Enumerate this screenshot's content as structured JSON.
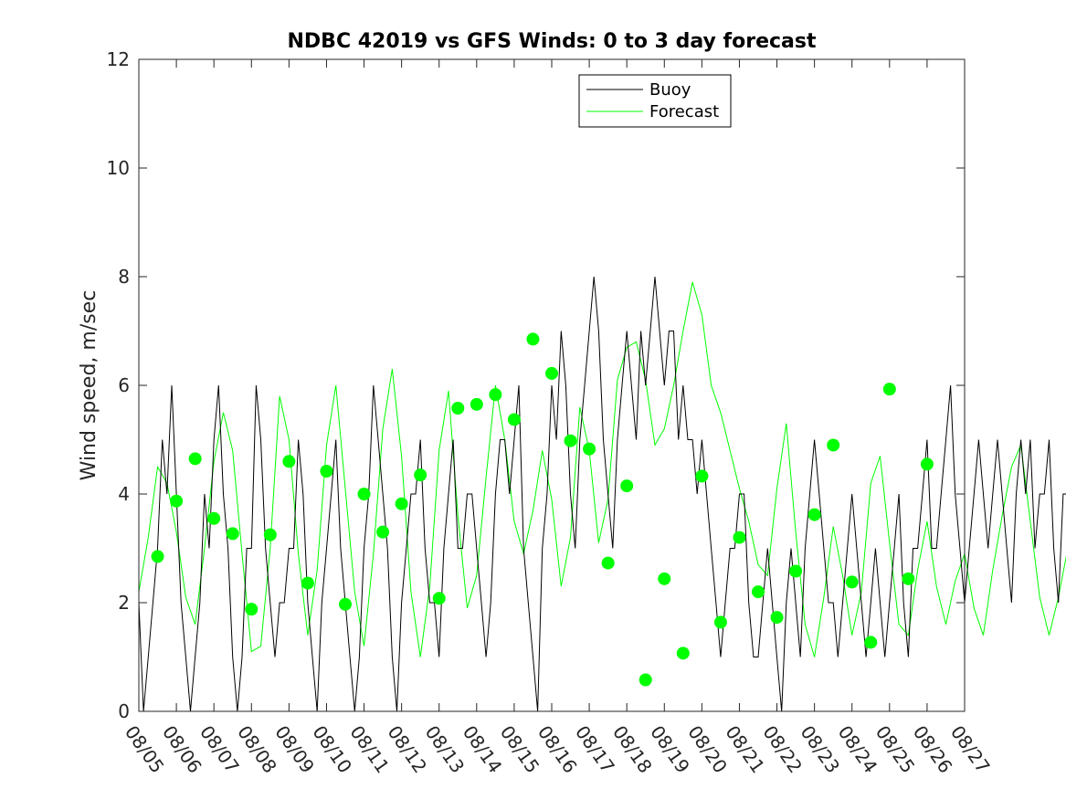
{
  "chart_data": {
    "type": "line",
    "title": "NDBC 42019 vs GFS Winds: 0 to 3 day forecast",
    "xlabel": "",
    "ylabel": "Wind speed, m/sec",
    "ylim": [
      0,
      12
    ],
    "yticks": [
      0,
      2,
      4,
      6,
      8,
      10,
      12
    ],
    "xlim": [
      0,
      22
    ],
    "x_tick_labels": [
      "08/05",
      "08/06",
      "08/07",
      "08/08",
      "08/09",
      "08/10",
      "08/11",
      "08/12",
      "08/13",
      "08/14",
      "08/15",
      "08/16",
      "08/17",
      "08/18",
      "08/19",
      "08/20",
      "08/21",
      "08/22",
      "08/23",
      "08/24",
      "08/25",
      "08/26",
      "08/27"
    ],
    "legend": {
      "location": "top-center",
      "entries": [
        {
          "label": "Buoy",
          "color": "#000000"
        },
        {
          "label": "Forecast",
          "color": "#00ff00"
        }
      ]
    },
    "colors": {
      "buoy": "#000000",
      "forecast": "#00ff00",
      "axes": "#262626"
    },
    "series": [
      {
        "name": "Buoy",
        "color": "#000000",
        "x_step_days": 0.125,
        "values": [
          2,
          0,
          1,
          2,
          3,
          5,
          4,
          6,
          4,
          2,
          1,
          0,
          1,
          2,
          4,
          3,
          5,
          6,
          4,
          3,
          1,
          0,
          1,
          3,
          3,
          6,
          5,
          3,
          2,
          1,
          2,
          2,
          3,
          3,
          5,
          4,
          2,
          1,
          0,
          2,
          3,
          4,
          5,
          3,
          2,
          1,
          0,
          1,
          3,
          4,
          6,
          5,
          4,
          3,
          1,
          0,
          2,
          3,
          4,
          4,
          5,
          3,
          2,
          2,
          1,
          3,
          4,
          5,
          3,
          3,
          4,
          4,
          3,
          2,
          1,
          2,
          4,
          5,
          5,
          4,
          5,
          6,
          3,
          2,
          1,
          0,
          3,
          4,
          6,
          5,
          7,
          6,
          4,
          3,
          5,
          6,
          7,
          8,
          7,
          5,
          4,
          3,
          5,
          6,
          7,
          6,
          5,
          7,
          6,
          7,
          8,
          7,
          6,
          7,
          7,
          5,
          6,
          5,
          5,
          4,
          5,
          4,
          3,
          2,
          1,
          2,
          3,
          3,
          4,
          4,
          2,
          1,
          1,
          2,
          3,
          2,
          1,
          0,
          2,
          3,
          2,
          1,
          3,
          4,
          5,
          4,
          3,
          2,
          2,
          1,
          2,
          3,
          4,
          3,
          2,
          1,
          2,
          3,
          2,
          1,
          2,
          3,
          4,
          2,
          1,
          3,
          3,
          4,
          5,
          3,
          3,
          4,
          5,
          6,
          4,
          3,
          2,
          3,
          4,
          5,
          4,
          3,
          4,
          5,
          4,
          3,
          2,
          4,
          5,
          4,
          5,
          3,
          4,
          4,
          5,
          3,
          2,
          4,
          4,
          4,
          4,
          5,
          3,
          4,
          4,
          3,
          2,
          3,
          4,
          4,
          5,
          4,
          3,
          3,
          4,
          5,
          4,
          5,
          4,
          4,
          4,
          4,
          3,
          2,
          2,
          3,
          3,
          4,
          4,
          5,
          4,
          4,
          3,
          3,
          4,
          5,
          4,
          4,
          3,
          3,
          4,
          4,
          5,
          4,
          3,
          4,
          3,
          4,
          4,
          4,
          4,
          4,
          3,
          4,
          4,
          5,
          4,
          4,
          4,
          4,
          4,
          5,
          4,
          4,
          3,
          4,
          4,
          4,
          4,
          5,
          4,
          4,
          4,
          4,
          4,
          4,
          4,
          4,
          4,
          4,
          4,
          5,
          4,
          4,
          4,
          4,
          4,
          4,
          4,
          4,
          4,
          4,
          4,
          4,
          4,
          4,
          4,
          4,
          4,
          4
        ]
      },
      {
        "name": "Forecast",
        "color": "#00ff00",
        "x_step_days": 0.25,
        "values": [
          2.2,
          3.2,
          4.5,
          4.2,
          3.3,
          2.1,
          1.6,
          3.0,
          4.6,
          5.5,
          4.8,
          2.9,
          1.1,
          1.2,
          3.0,
          5.8,
          5.0,
          2.9,
          1.4,
          2.6,
          4.9,
          6.0,
          4.1,
          2.2,
          1.2,
          2.9,
          5.2,
          6.3,
          4.7,
          2.2,
          1.0,
          2.3,
          4.8,
          5.9,
          3.6,
          1.9,
          2.5,
          4.3,
          6.0,
          5.0,
          3.5,
          2.9,
          3.7,
          4.8,
          3.9,
          2.3,
          3.2,
          5.6,
          4.8,
          3.1,
          3.9,
          6.1,
          6.7,
          6.8,
          6.1,
          4.9,
          5.2,
          6.0,
          7.0,
          7.9,
          7.3,
          6.0,
          5.5,
          4.8,
          4.1,
          3.5,
          2.7,
          2.5,
          4.1,
          5.3,
          3.3,
          1.6,
          1.0,
          2.1,
          3.4,
          2.5,
          1.4,
          2.2,
          4.2,
          4.7,
          3.1,
          1.6,
          1.4,
          2.6,
          3.5,
          2.3,
          1.6,
          2.4,
          2.9,
          1.9,
          1.4,
          2.6,
          3.6,
          4.5,
          4.9,
          3.5,
          2.1,
          1.4,
          2.1,
          3.0,
          5.9,
          5.3,
          4.0,
          2.3,
          3.5,
          4.8,
          4.2,
          3.2,
          3.8,
          4.5,
          4.2,
          4.0,
          3.7,
          3.2,
          3.6,
          4.6,
          4.5,
          3.4,
          3.6,
          4.4,
          4.1,
          3.9,
          3.4,
          3.3,
          3.9,
          4.2,
          4.0,
          3.7,
          3.5,
          3.9,
          4.2,
          3.8,
          3.6,
          3.4,
          3.5,
          3.8,
          4.0,
          4.1,
          3.9,
          3.7,
          3.6,
          3.7,
          3.9,
          4.0,
          3.9,
          3.8,
          3.7,
          3.8,
          3.9,
          4.0,
          4.0,
          3.9,
          3.8,
          3.8,
          3.9,
          3.9,
          4.0,
          4.0,
          3.9,
          3.9,
          3.9,
          3.9,
          3.9,
          3.9,
          3.9,
          3.9,
          3.9,
          3.9,
          3.9,
          3.9,
          3.9,
          3.9,
          3.9,
          3.9,
          3.9,
          3.9,
          3.9,
          3.9,
          3.9,
          3.9,
          3.9,
          3.9,
          3.9,
          3.9,
          3.9,
          3.9,
          3.9,
          3.9,
          3.9,
          3.9,
          3.9,
          3.9,
          3.9,
          3.9,
          3.9,
          3.9,
          3.9,
          3.9,
          3.9,
          3.9,
          3.9,
          3.9,
          3.9,
          3.9,
          3.9,
          3.9,
          3.9,
          3.9,
          3.9,
          3.9,
          3.9,
          3.9,
          3.9,
          3.9,
          3.9,
          3.9,
          3.9,
          3.9,
          3.9,
          3.9
        ]
      },
      {
        "name": "Forecast analysis (markers)",
        "color": "#00ff00",
        "marker": "circle",
        "x": [
          0.5,
          1.0,
          1.5,
          2.0,
          2.5,
          3.0,
          3.5,
          4.0,
          4.5,
          5.0,
          5.5,
          6.0,
          6.5,
          7.0,
          7.5,
          8.0,
          8.5,
          9.0,
          9.5,
          10.0,
          10.5,
          11.0,
          11.5,
          12.0,
          12.5,
          13.0,
          13.5,
          14.0,
          14.5,
          15.0,
          15.5,
          16.0,
          16.5,
          17.0,
          17.5,
          18.0,
          18.5,
          19.0,
          19.5,
          20.0,
          20.5,
          21.0
        ],
        "values": [
          2.85,
          3.87,
          4.65,
          3.55,
          3.27,
          1.88,
          3.25,
          4.6,
          2.36,
          4.42,
          1.97,
          4.0,
          3.3,
          3.82,
          4.35,
          2.08,
          5.58,
          5.65,
          5.83,
          5.37,
          6.85,
          6.22,
          4.98,
          4.83,
          2.73,
          4.15,
          0.58,
          2.44,
          1.07,
          4.33,
          1.64,
          3.2,
          2.2,
          1.73,
          2.58,
          3.62,
          4.9,
          2.38,
          1.27,
          5.93,
          2.44,
          4.55
        ]
      }
    ]
  }
}
